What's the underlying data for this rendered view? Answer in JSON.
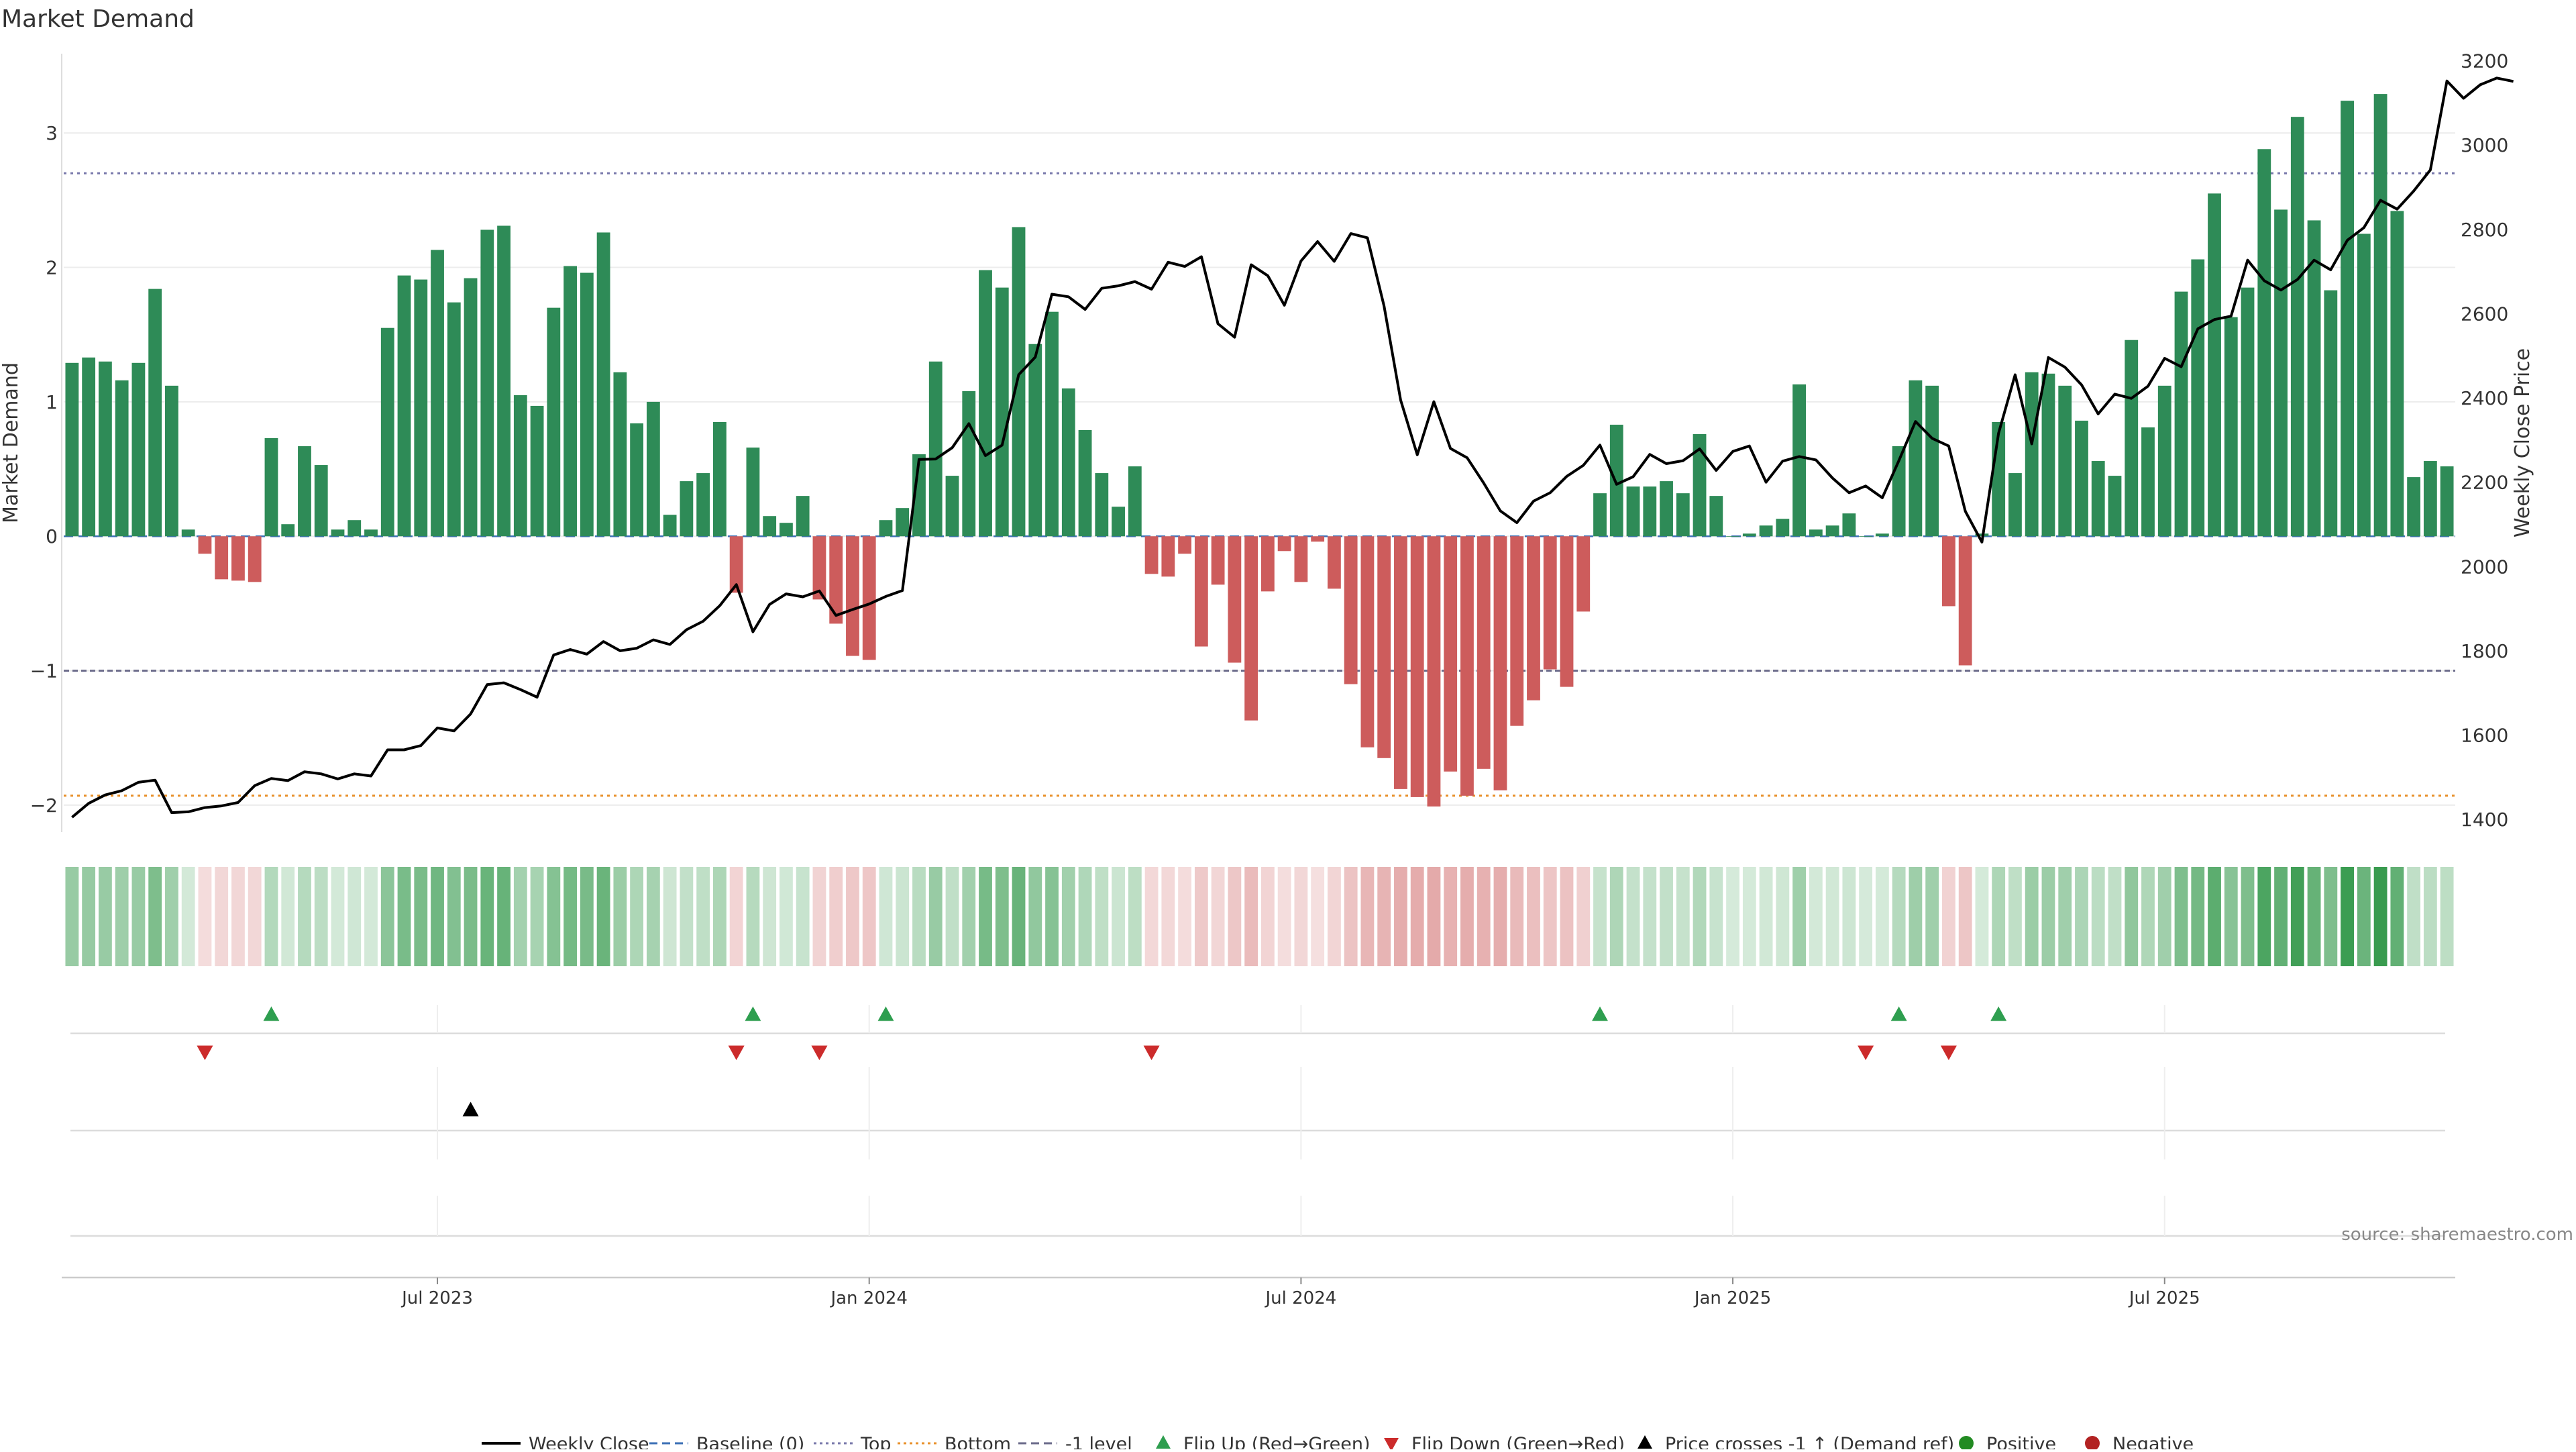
{
  "title": "Market Demand",
  "source": "source: sharemaestro.com",
  "colors": {
    "positive_bar": "#2e8b57",
    "negative_bar": "#cd5c5c",
    "price_line": "#000000",
    "top_line": "#7777aa",
    "bottom_line": "#e8902a",
    "neg1_line": "#6a6a8a",
    "flip_up": "#2e9e4f",
    "flip_down": "#cc2b2b",
    "cross_marker": "#000000"
  },
  "chart_data": {
    "type": "bar",
    "xlabel": "",
    "ylabel": "Market Demand",
    "y2label": "Weekly Close Price",
    "ylim": [
      -2.2,
      3.6
    ],
    "y2lim": [
      1370,
      3220
    ],
    "yticks": [
      -2,
      -1,
      0,
      1,
      2,
      3
    ],
    "y2ticks": [
      1400,
      1600,
      1800,
      2000,
      2200,
      2400,
      2600,
      2800,
      3000,
      3200
    ],
    "x_tick_labels": [
      "Jul 2023",
      "Jan 2024",
      "Jul 2024",
      "Jan 2025",
      "Jul 2025"
    ],
    "x_tick_positions": [
      22,
      48,
      74,
      100,
      126
    ],
    "reference_lines": {
      "top": 2.7,
      "bottom": -1.93,
      "minus_one": -1.0,
      "baseline": 0
    },
    "series": [
      {
        "name": "Market Demand",
        "values": [
          1.29,
          1.33,
          1.3,
          1.16,
          1.29,
          1.84,
          1.12,
          0.05,
          -0.13,
          -0.32,
          -0.33,
          -0.34,
          0.73,
          0.09,
          0.67,
          0.53,
          0.05,
          0.12,
          0.05,
          1.55,
          1.94,
          1.91,
          2.13,
          1.74,
          1.92,
          2.28,
          2.31,
          1.05,
          0.97,
          1.7,
          2.01,
          1.96,
          2.26,
          1.22,
          0.84,
          1.0,
          0.16,
          0.41,
          0.47,
          0.85,
          -0.42,
          0.66,
          0.15,
          0.1,
          0.3,
          -0.47,
          -0.65,
          -0.89,
          -0.92,
          0.12,
          0.21,
          0.61,
          1.3,
          0.45,
          1.08,
          1.98,
          1.85,
          2.3,
          1.43,
          1.67,
          1.1,
          0.79,
          0.47,
          0.22,
          0.52,
          -0.28,
          -0.3,
          -0.13,
          -0.82,
          -0.36,
          -0.94,
          -1.37,
          -0.41,
          -0.11,
          -0.34,
          -0.04,
          -0.39,
          -1.1,
          -1.57,
          -1.65,
          -1.88,
          -1.94,
          -2.01,
          -1.75,
          -1.93,
          -1.73,
          -1.89,
          -1.41,
          -1.22,
          -0.99,
          -1.12,
          -0.56,
          0.32,
          0.83,
          0.37,
          0.37,
          0.41,
          0.32,
          0.76,
          0.3,
          0.0,
          0.02,
          0.08,
          0.13,
          1.13,
          0.05,
          0.08,
          0.17,
          0.0,
          0.02,
          0.67,
          1.16,
          1.12,
          -0.52,
          -0.96,
          0.02,
          0.85,
          0.47,
          1.22,
          1.21,
          1.12,
          0.86,
          0.56,
          0.45,
          1.46,
          0.81,
          1.12,
          1.82,
          2.06,
          2.55,
          1.63,
          1.85,
          2.88,
          2.43,
          3.12,
          2.35,
          1.83,
          3.24,
          2.25,
          3.29,
          2.42,
          0.44,
          0.56,
          0.52
        ]
      },
      {
        "name": "Weekly Close",
        "values": [
          1405,
          1438,
          1458,
          1468,
          1488,
          1493,
          1416,
          1418,
          1428,
          1432,
          1440,
          1480,
          1497,
          1492,
          1513,
          1508,
          1496,
          1508,
          1503,
          1565,
          1565,
          1575,
          1617,
          1610,
          1650,
          1720,
          1724,
          1708,
          1690,
          1790,
          1803,
          1792,
          1822,
          1800,
          1806,
          1826,
          1815,
          1850,
          1870,
          1907,
          1957,
          1845,
          1910,
          1935,
          1928,
          1942,
          1884,
          1898,
          1911,
          1929,
          1943,
          2254,
          2255,
          2282,
          2339,
          2263,
          2288,
          2455,
          2497,
          2646,
          2640,
          2610,
          2660,
          2666,
          2676,
          2658,
          2722,
          2712,
          2735,
          2576,
          2544,
          2716,
          2690,
          2620,
          2725,
          2771,
          2724,
          2790,
          2780,
          2618,
          2395,
          2265,
          2391,
          2280,
          2258,
          2198,
          2132,
          2104,
          2155,
          2175,
          2214,
          2240,
          2288,
          2195,
          2213,
          2266,
          2244,
          2251,
          2279,
          2228,
          2273,
          2286,
          2200,
          2250,
          2261,
          2253,
          2210,
          2175,
          2191,
          2163,
          2251,
          2344,
          2304,
          2286,
          2131,
          2058,
          2316,
          2455,
          2291,
          2496,
          2473,
          2431,
          2362,
          2409,
          2399,
          2428,
          2494,
          2474,
          2564,
          2586,
          2594,
          2727,
          2678,
          2656,
          2681,
          2727,
          2704,
          2774,
          2804,
          2869,
          2848,
          2891,
          2941,
          3152,
          3111,
          3143,
          3159,
          3151
        ]
      }
    ]
  },
  "strips": {
    "flip_up_indices": [
      12,
      41,
      49,
      92,
      110,
      116
    ],
    "flip_down_indices": [
      8,
      40,
      45,
      65,
      108,
      113
    ],
    "cross_up_indices": [
      24
    ]
  },
  "legend": [
    {
      "label": "Weekly Close",
      "kind": "line",
      "color": "#000000"
    },
    {
      "label": "Baseline (0)",
      "kind": "dashed",
      "color": "#3b6fb6"
    },
    {
      "label": "Top",
      "kind": "dotted",
      "color": "#7777aa"
    },
    {
      "label": "Bottom",
      "kind": "dotted",
      "color": "#e8902a"
    },
    {
      "label": "-1 level",
      "kind": "dashed",
      "color": "#6a6a8a"
    },
    {
      "label": "Flip Up (Red→Green)",
      "kind": "tri-up",
      "color": "#2e9e4f"
    },
    {
      "label": "Flip Down (Green→Red)",
      "kind": "tri-down",
      "color": "#cc2b2b"
    },
    {
      "label": "Price crosses -1 ↑ (Demand ref)",
      "kind": "tri-up",
      "color": "#000000"
    },
    {
      "label": "Positive",
      "kind": "dot",
      "color": "#228b22"
    },
    {
      "label": "Negative",
      "kind": "dot",
      "color": "#b22222"
    }
  ]
}
